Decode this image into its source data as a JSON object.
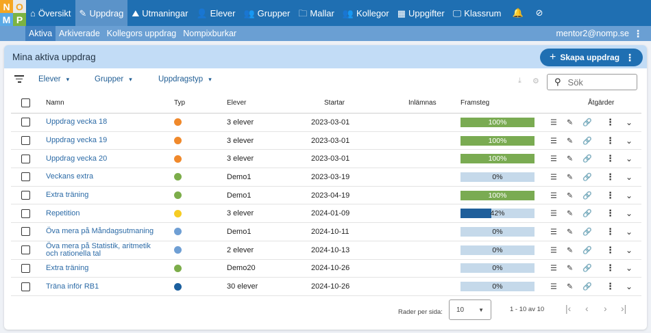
{
  "logo": [
    "N",
    "O",
    "M",
    "P"
  ],
  "nav": [
    {
      "label": "Översikt",
      "icon": "home-icon",
      "glyph": "⌂"
    },
    {
      "label": "Uppdrag",
      "icon": "assignment-icon",
      "glyph": "✎",
      "active": true
    },
    {
      "label": "Utmaningar",
      "icon": "challenge-icon",
      "glyph": "⛰"
    },
    {
      "label": "Elever",
      "icon": "person-icon",
      "glyph": "👤"
    },
    {
      "label": "Grupper",
      "icon": "groups-icon",
      "glyph": "👥"
    },
    {
      "label": "Mallar",
      "icon": "folder-icon",
      "glyph": "🗀"
    },
    {
      "label": "Kollegor",
      "icon": "colleagues-icon",
      "glyph": "👥"
    },
    {
      "label": "Uppgifter",
      "icon": "tasks-icon",
      "glyph": "▦"
    },
    {
      "label": "Klassrum",
      "icon": "classroom-icon",
      "glyph": "🖵"
    }
  ],
  "subnav": [
    "Aktiva",
    "Arkiverade",
    "Kollegors uppdrag",
    "Nompixburkar"
  ],
  "user_email": "mentor2@nomp.se",
  "card": {
    "title": "Mina aktiva uppdrag",
    "create_label": "Skapa uppdrag"
  },
  "filters": {
    "students": "Elever",
    "groups": "Grupper",
    "type": "Uppdragstyp",
    "search_placeholder": "Sök"
  },
  "columns": {
    "name": "Namn",
    "type": "Typ",
    "students": "Elever",
    "start": "Startar",
    "submit": "Inlämnas",
    "progress": "Framsteg",
    "actions": "Åtgärder"
  },
  "colors": {
    "orange": "#f0892b",
    "green": "#7cad4a",
    "yellow": "#f6cc23",
    "lightblue": "#6f9fd4",
    "darkblue": "#1b5f9e",
    "progress_full": "#7aab52",
    "progress_partial": "#1f5f9b"
  },
  "rows": [
    {
      "name": "Uppdrag vecka 18",
      "type_color": "#f0892b",
      "students": "3 elever",
      "start": "2023-03-01",
      "progress": 100,
      "progress_label": "100%"
    },
    {
      "name": "Uppdrag vecka 19",
      "type_color": "#f0892b",
      "students": "3 elever",
      "start": "2023-03-01",
      "progress": 100,
      "progress_label": "100%"
    },
    {
      "name": "Uppdrag vecka 20",
      "type_color": "#f0892b",
      "students": "3 elever",
      "start": "2023-03-01",
      "progress": 100,
      "progress_label": "100%"
    },
    {
      "name": "Veckans extra",
      "type_color": "#7cad4a",
      "students": "Demo1",
      "start": "2023-03-19",
      "progress": 0,
      "progress_label": "0%"
    },
    {
      "name": "Extra träning",
      "type_color": "#7cad4a",
      "students": "Demo1",
      "start": "2023-04-19",
      "progress": 100,
      "progress_label": "100%"
    },
    {
      "name": "Repetition",
      "type_color": "#f6cc23",
      "students": "3 elever",
      "start": "2024-01-09",
      "progress": 42,
      "progress_label": "42%"
    },
    {
      "name": "Öva mera på Måndagsutmaning",
      "type_color": "#6f9fd4",
      "students": "Demo1",
      "start": "2024-10-11",
      "progress": 0,
      "progress_label": "0%"
    },
    {
      "name": "Öva mera på Statistik, aritmetik och rationella tal",
      "type_color": "#6f9fd4",
      "students": "2 elever",
      "start": "2024-10-13",
      "progress": 0,
      "progress_label": "0%"
    },
    {
      "name": "Extra träning",
      "type_color": "#7cad4a",
      "students": "Demo20",
      "start": "2024-10-26",
      "progress": 0,
      "progress_label": "0%"
    },
    {
      "name": "Träna inför RB1",
      "type_color": "#1b5f9e",
      "students": "30 elever",
      "start": "2024-10-26",
      "progress": 0,
      "progress_label": "0%"
    }
  ],
  "pagination": {
    "rows_per_page_label": "Rader per sida:",
    "rows_per_page": "10",
    "range": "1 - 10 av 10"
  }
}
